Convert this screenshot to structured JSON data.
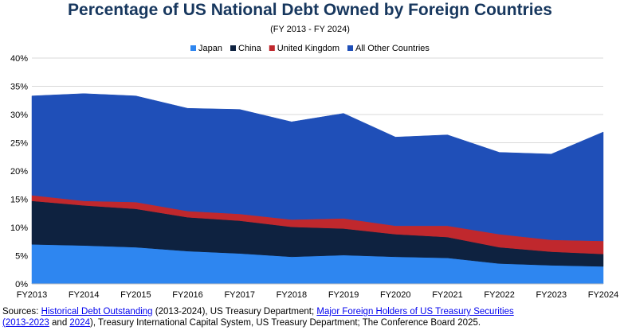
{
  "chart_data": {
    "type": "area",
    "stacked": true,
    "title": "Percentage of US National Debt Owned by Foreign Countries",
    "subtitle": "(FY 2013 - FY 2024)",
    "categories": [
      "FY2013",
      "FY2014",
      "FY2015",
      "FY2016",
      "FY2017",
      "FY2018",
      "FY2019",
      "FY2020",
      "FY2021",
      "FY2022",
      "FY2023",
      "FY2024"
    ],
    "y_ticks": [
      "0%",
      "5%",
      "10%",
      "15%",
      "20%",
      "25%",
      "30%",
      "35%",
      "40%"
    ],
    "ylim": [
      0,
      40
    ],
    "y_unit": "%",
    "grid": true,
    "legend_position": "top",
    "series": [
      {
        "name": "Japan",
        "color": "#2e86f0",
        "values": [
          7.0,
          6.8,
          6.5,
          5.8,
          5.4,
          4.8,
          5.1,
          4.8,
          4.6,
          3.6,
          3.3,
          3.1
        ]
      },
      {
        "name": "China",
        "color": "#0e2240",
        "values": [
          7.7,
          7.1,
          6.8,
          6.0,
          5.8,
          5.3,
          4.7,
          4.0,
          3.7,
          2.9,
          2.4,
          2.2
        ]
      },
      {
        "name": "United Kingdom",
        "color": "#c0282d",
        "values": [
          1.0,
          0.8,
          1.2,
          1.1,
          1.2,
          1.3,
          1.8,
          1.5,
          2.0,
          2.3,
          2.1,
          2.3
        ]
      },
      {
        "name": "All Other Countries",
        "color": "#1f4fb8",
        "values": [
          17.6,
          19.0,
          18.8,
          18.2,
          18.5,
          17.3,
          18.6,
          15.7,
          16.1,
          14.5,
          15.2,
          19.3
        ]
      }
    ]
  },
  "sources": {
    "prefix": "Sources: ",
    "link1": "Historical Debt Outstanding",
    "text1": " (2013-2024), US Treasury Department; ",
    "link2": "Major Foreign Holders of US Treasury Securities",
    "link3": "(2013-2023",
    "text2": " and ",
    "link4": "2024",
    "text3": "), Treasury International Capital System, US Treasury Department; The Conference Board 2025."
  }
}
